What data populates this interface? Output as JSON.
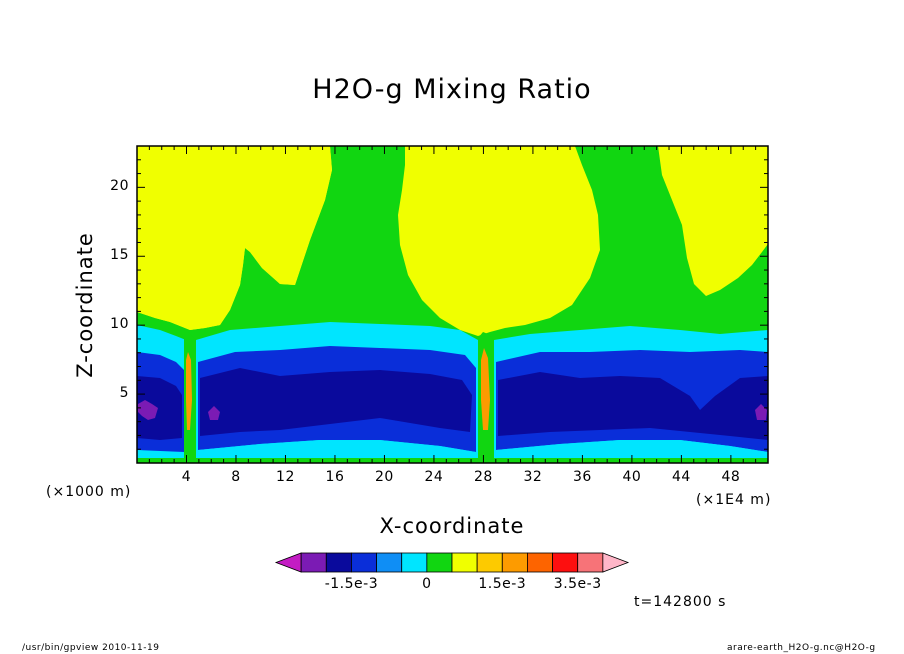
{
  "chart_data": {
    "type": "heatmap",
    "title": "H2O-g Mixing Ratio",
    "xlabel": "X-coordinate",
    "ylabel": "Z-coordinate",
    "x_unit_note": "(×1000 m)",
    "y_unit_note": "(×1E4 m)",
    "time_label": "t=142800 s",
    "xlim": [
      0,
      51
    ],
    "ylim": [
      0,
      23
    ],
    "x_ticks": [
      4,
      8,
      12,
      16,
      20,
      24,
      28,
      32,
      36,
      40,
      44,
      48
    ],
    "x_tick_labels": [
      "4",
      "8",
      "12",
      "16",
      "20",
      "24",
      "28",
      "32",
      "36",
      "40",
      "44",
      "48"
    ],
    "y_ticks": [
      5,
      10,
      15,
      20
    ],
    "y_tick_labels": [
      "5",
      "10",
      "15",
      "20"
    ],
    "colorbar": {
      "colors": [
        "#c31cc3",
        "#7b1bb4",
        "#0a0a9c",
        "#0a2ed9",
        "#0f8ef5",
        "#00e5ff",
        "#11d611",
        "#f0ff00",
        "#fdca00",
        "#fd9b00",
        "#fd6400",
        "#fd0f0f",
        "#f77378",
        "#ffb6c8"
      ],
      "labels": [
        {
          "text": "-1.5e-3",
          "index": 3
        },
        {
          "text": "0",
          "index": 6
        },
        {
          "text": "1.5e-3",
          "index": 9
        },
        {
          "text": "3.5e-3",
          "index": 12
        }
      ]
    },
    "regions": [
      {
        "level": "yellow",
        "color": "#f0ff00"
      },
      {
        "level": "green",
        "color": "#11d611"
      },
      {
        "level": "cyan",
        "color": "#00e5ff"
      },
      {
        "level": "blue",
        "color": "#0a2ed9"
      },
      {
        "level": "dark-blue",
        "color": "#0a0a9c"
      },
      {
        "level": "purple",
        "color": "#7b1bb4"
      },
      {
        "level": "orange",
        "color": "#fd9b00"
      }
    ]
  },
  "footer": {
    "left": "/usr/bin/gpview  2010-11-19",
    "right": "arare-earth_H2O-g.nc@H2O-g"
  }
}
